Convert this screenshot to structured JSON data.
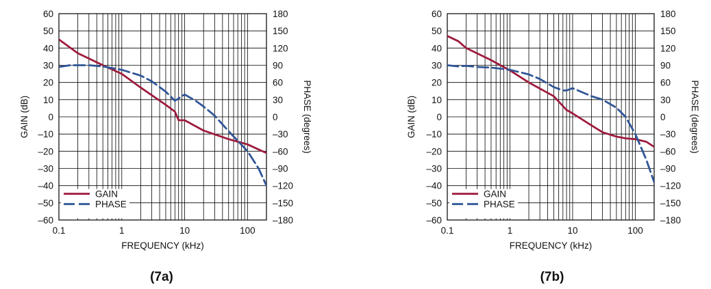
{
  "colors": {
    "gain": "#9e1b3c",
    "phase": "#2f5597",
    "grid": "#000000"
  },
  "chart_data": [
    {
      "type": "line",
      "caption": "(7a)",
      "xlabel": "FREQUENCY (kHz)",
      "ylabel": "GAIN (dB)",
      "y2label": "PHASE (degrees)",
      "x_scale": "log",
      "xlim": [
        0.1,
        200
      ],
      "ylim": [
        -60,
        60
      ],
      "y2lim": [
        -180,
        180
      ],
      "x_ticks": [
        0.1,
        1,
        10,
        100
      ],
      "x_tick_labels": [
        "0.1",
        "1",
        "10",
        "100"
      ],
      "y_ticks": [
        60,
        50,
        40,
        30,
        20,
        10,
        0,
        -10,
        -20,
        -30,
        -40,
        -50,
        -60
      ],
      "y_tick_labels": [
        "60",
        "50",
        "40",
        "30",
        "20",
        "10",
        "0",
        "–10",
        "–20",
        "–30",
        "–40",
        "–50",
        "–60"
      ],
      "y2_ticks": [
        180,
        150,
        120,
        90,
        60,
        30,
        0,
        -30,
        -60,
        -90,
        -120,
        -150,
        -180
      ],
      "y2_tick_labels": [
        "180",
        "150",
        "120",
        "90",
        "60",
        "30",
        "0",
        "–30",
        "–60",
        "–90",
        "–120",
        "–150",
        "–180"
      ],
      "grid": true,
      "legend": "bottom-left",
      "series": [
        {
          "name": "GAIN",
          "axis": "left",
          "style": "solid",
          "x": [
            0.1,
            0.2,
            0.5,
            1,
            2,
            5,
            7,
            8,
            10,
            20,
            50,
            100,
            150,
            200
          ],
          "y": [
            45,
            37,
            30,
            25,
            17,
            7,
            3,
            -2,
            -2,
            -8,
            -13,
            -16,
            -19,
            -21
          ]
        },
        {
          "name": "PHASE",
          "axis": "right",
          "style": "dashed",
          "x": [
            0.1,
            0.15,
            0.2,
            0.3,
            0.5,
            1,
            2,
            3,
            5,
            7,
            10,
            15,
            20,
            30,
            50,
            100,
            150,
            200
          ],
          "y": [
            87,
            90,
            90,
            90,
            88,
            82,
            72,
            62,
            44,
            28,
            39,
            28,
            18,
            2,
            -25,
            -60,
            -90,
            -120
          ]
        }
      ]
    },
    {
      "type": "line",
      "caption": "(7b)",
      "xlabel": "FREQUENCY (kHz)",
      "ylabel": "GAIN (dB)",
      "y2label": "PHASE (degrees)",
      "x_scale": "log",
      "xlim": [
        0.1,
        200
      ],
      "ylim": [
        -60,
        60
      ],
      "y2lim": [
        -180,
        180
      ],
      "x_ticks": [
        0.1,
        1,
        10,
        100
      ],
      "x_tick_labels": [
        "0.1",
        "1",
        "10",
        "100"
      ],
      "y_ticks": [
        60,
        50,
        40,
        30,
        20,
        10,
        0,
        -10,
        -20,
        -30,
        -40,
        -50,
        -60
      ],
      "y_tick_labels": [
        "60",
        "50",
        "40",
        "30",
        "20",
        "10",
        "0",
        "–10",
        "–20",
        "–30",
        "–40",
        "–50",
        "–60"
      ],
      "y2_ticks": [
        180,
        150,
        120,
        90,
        60,
        30,
        0,
        -30,
        -60,
        -90,
        -120,
        -150,
        -180
      ],
      "y2_tick_labels": [
        "180",
        "150",
        "120",
        "90",
        "60",
        "30",
        "0",
        "–30",
        "–60",
        "–90",
        "–120",
        "–150",
        "–180"
      ],
      "grid": true,
      "legend": "bottom-left",
      "series": [
        {
          "name": "GAIN",
          "axis": "left",
          "style": "solid",
          "x": [
            0.1,
            0.15,
            0.2,
            0.5,
            1,
            2,
            5,
            8,
            10,
            20,
            30,
            50,
            70,
            100,
            150,
            200
          ],
          "y": [
            47,
            44,
            40,
            33,
            27,
            20,
            12,
            4,
            2,
            -5,
            -9,
            -11.5,
            -12.5,
            -13,
            -14.5,
            -17.5
          ]
        },
        {
          "name": "PHASE",
          "axis": "right",
          "style": "dashed",
          "x": [
            0.1,
            0.15,
            0.2,
            0.3,
            0.5,
            1,
            2,
            3,
            5,
            7,
            8,
            10,
            20,
            30,
            50,
            70,
            100,
            150,
            200
          ],
          "y": [
            90,
            88,
            89,
            87,
            86,
            82,
            74,
            66,
            52,
            46,
            46,
            50,
            36,
            30,
            16,
            0,
            -30,
            -75,
            -114
          ]
        }
      ]
    }
  ]
}
